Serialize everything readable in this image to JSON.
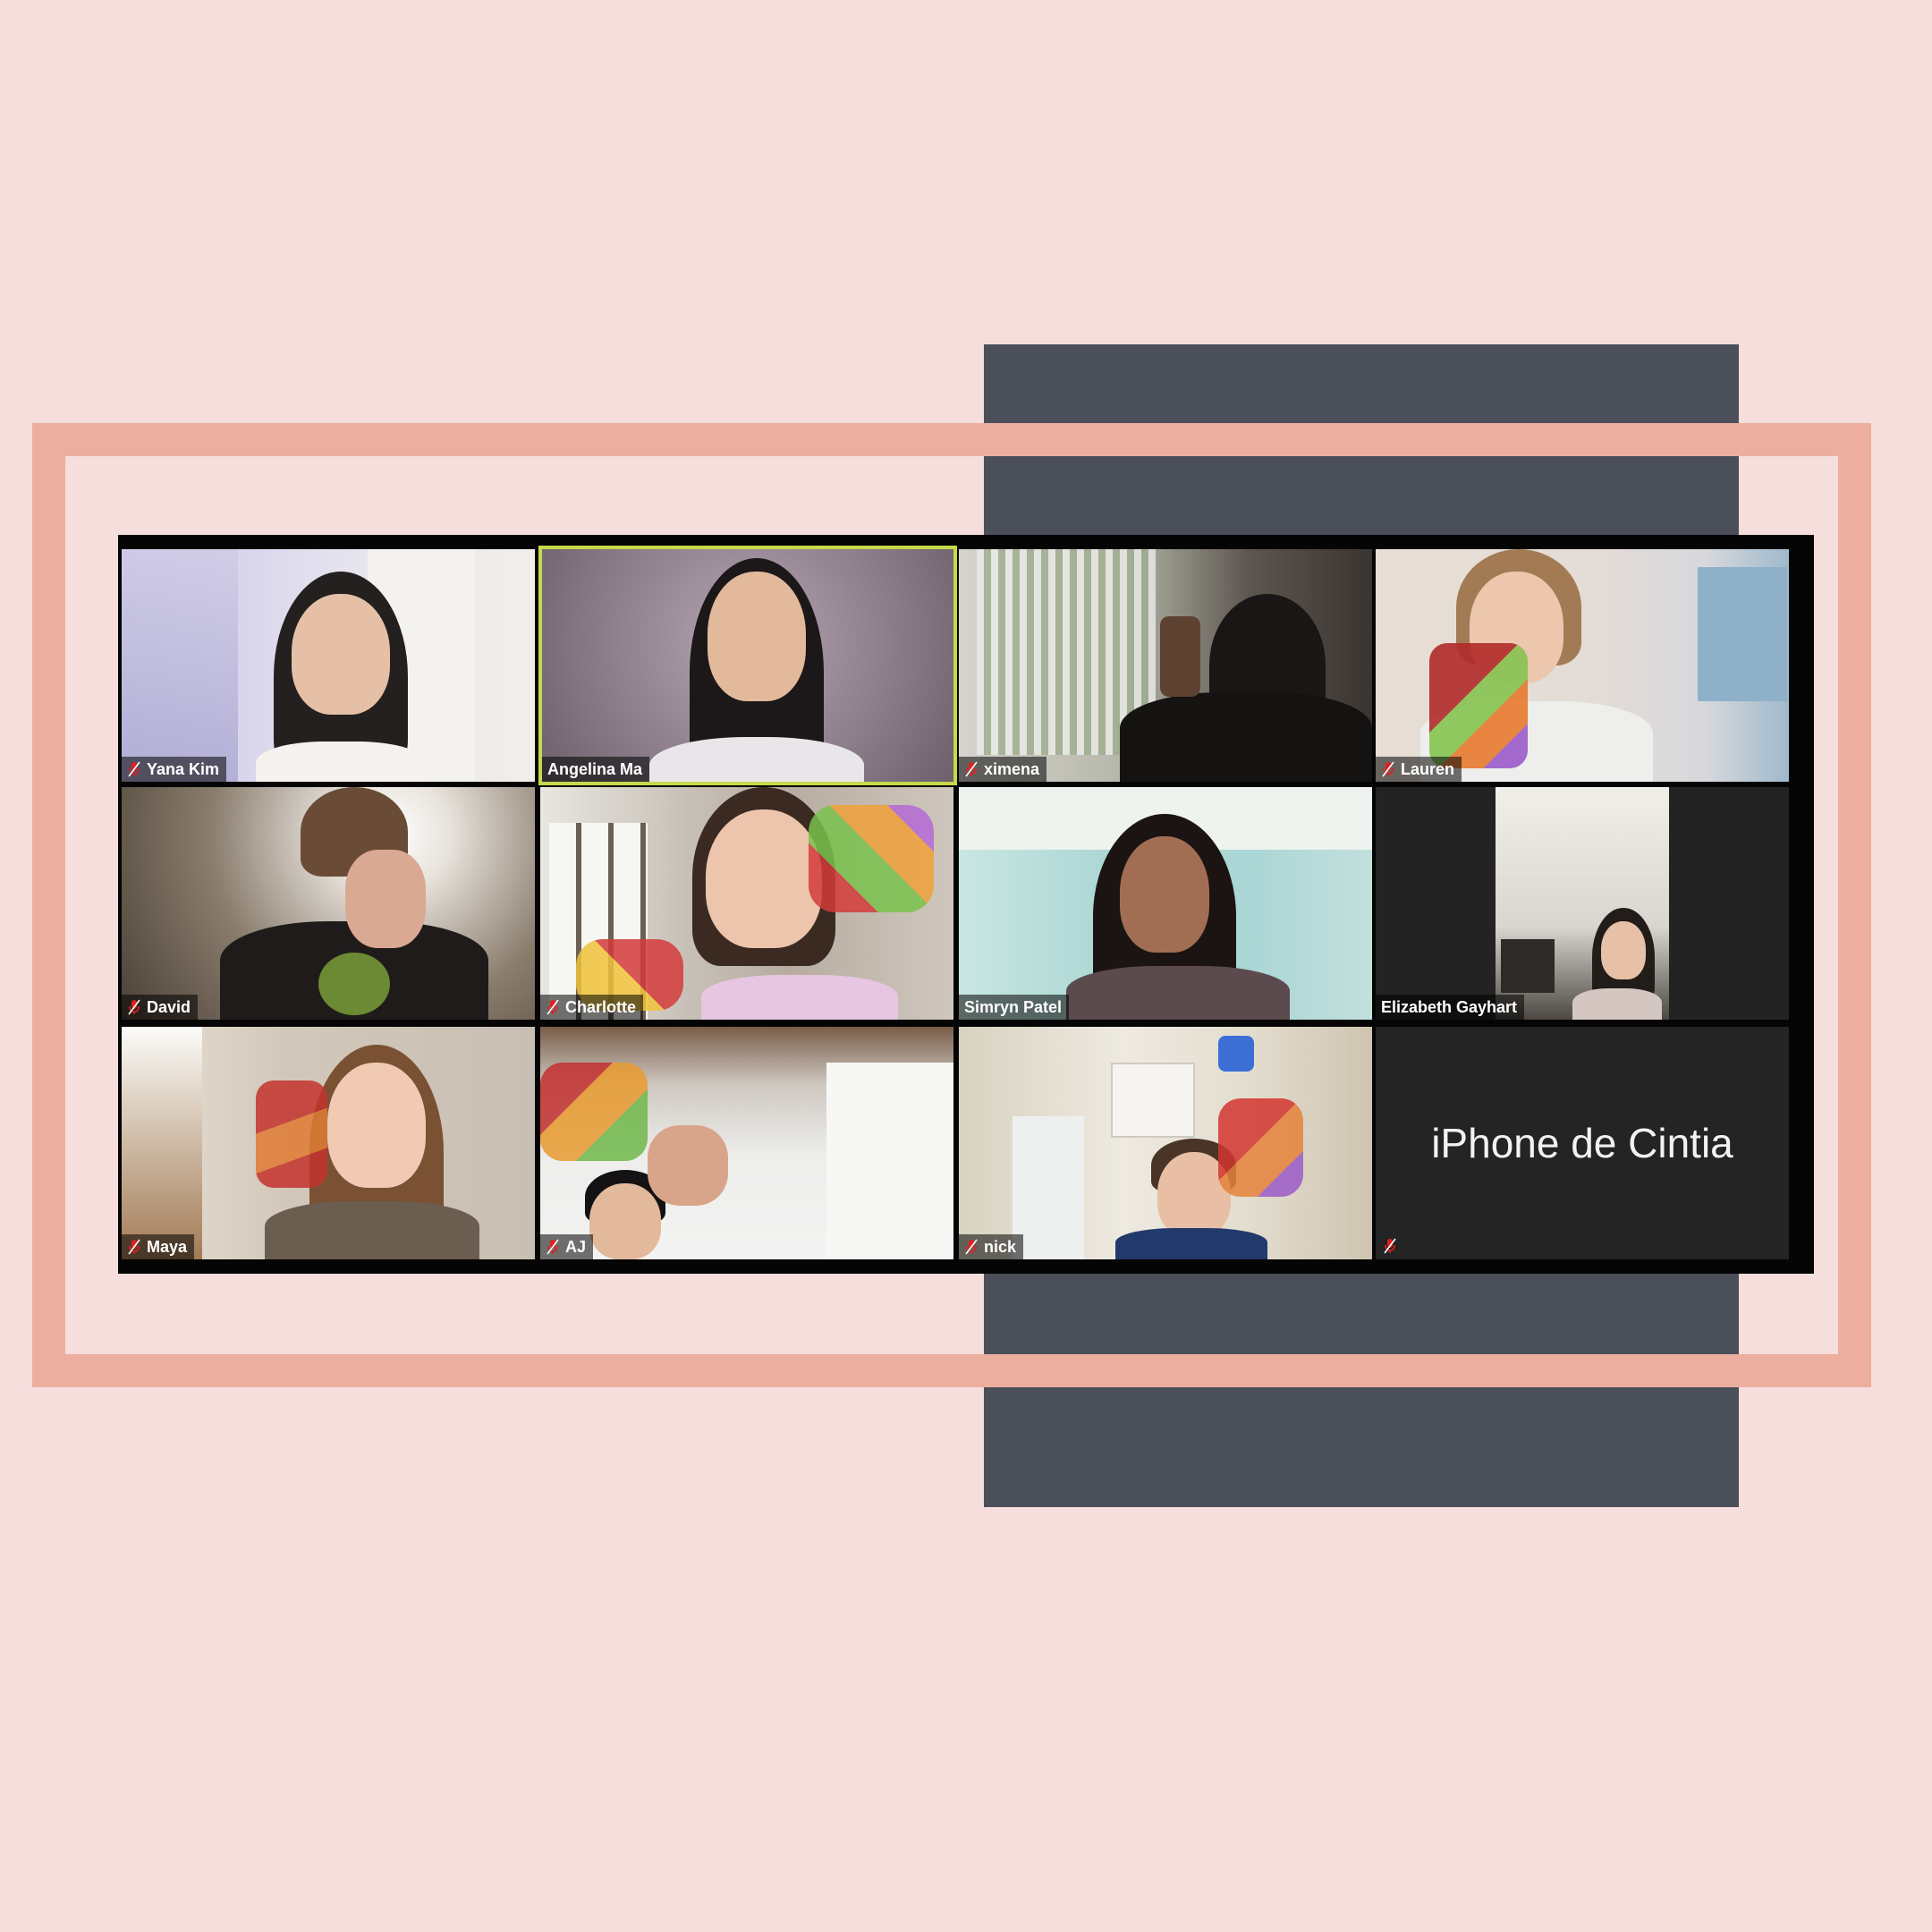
{
  "gallery": {
    "participants": [
      {
        "name": "Yana Kim",
        "muted": true
      },
      {
        "name": "Angelina Ma",
        "muted": false,
        "active_speaker": true
      },
      {
        "name": "ximena",
        "muted": true
      },
      {
        "name": "Lauren",
        "muted": true
      },
      {
        "name": "David",
        "muted": true
      },
      {
        "name": "Charlotte",
        "muted": true
      },
      {
        "name": "Simryn Patel",
        "muted": false
      },
      {
        "name": "Elizabeth Gayhart",
        "muted": false
      },
      {
        "name": "Maya",
        "muted": true
      },
      {
        "name": "AJ",
        "muted": true
      },
      {
        "name": "nick",
        "muted": true
      },
      {
        "name": "iPhone de Cintia",
        "muted": true,
        "video_off": true
      }
    ]
  },
  "colors": {
    "background": "#f5dedb",
    "frame": "#ecaf9f",
    "accent_block": "#4a4f59",
    "active_speaker_border": "#c6d94a",
    "muted_icon": "#e02020"
  },
  "icons": {
    "muted": "mic-muted-icon"
  }
}
